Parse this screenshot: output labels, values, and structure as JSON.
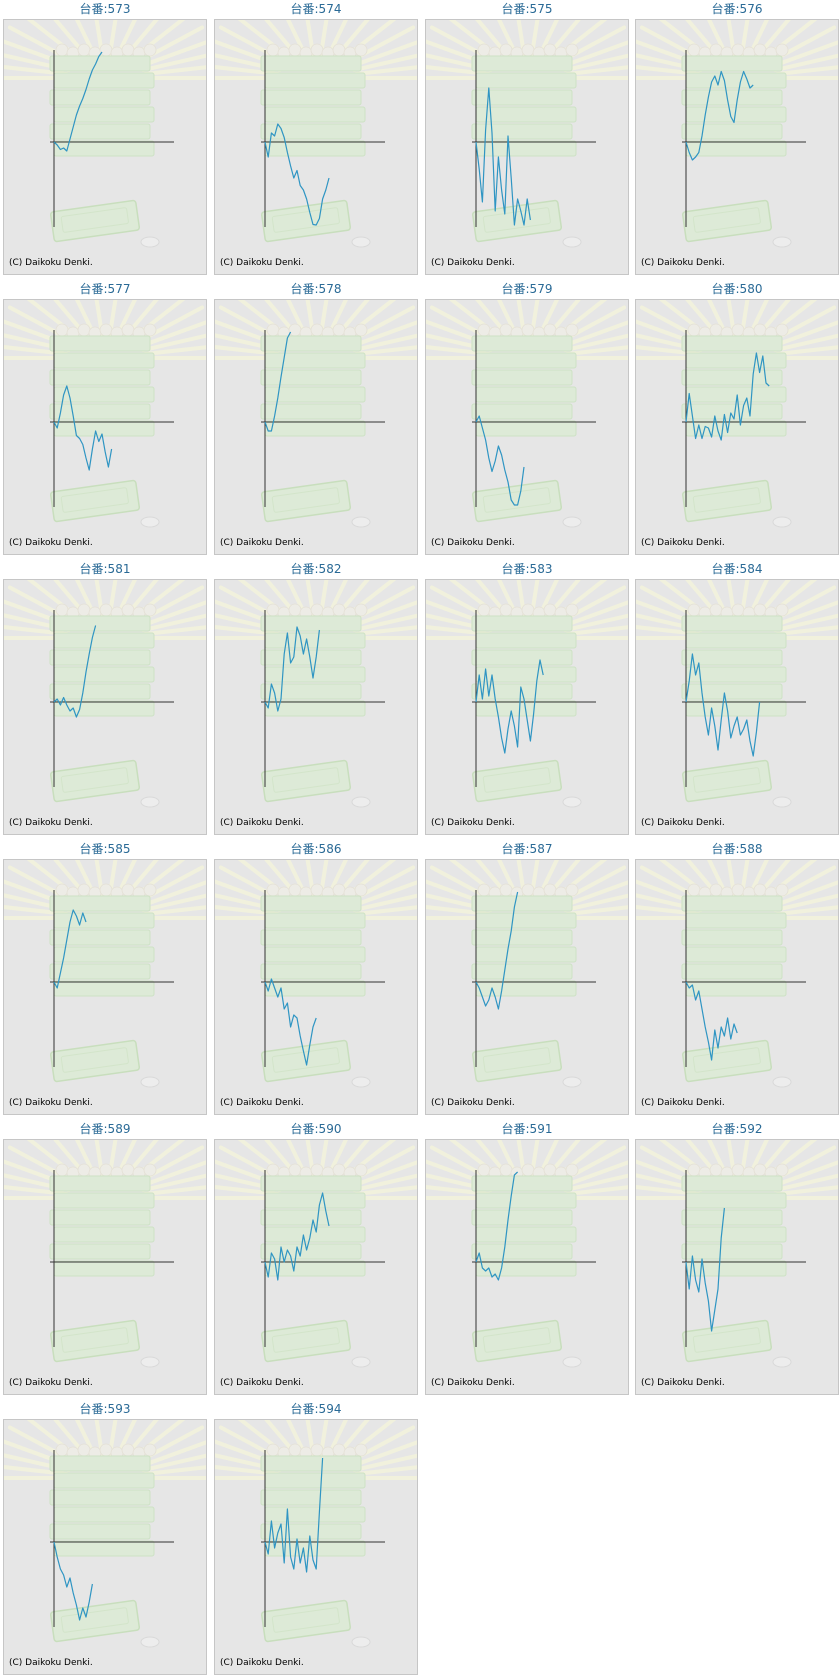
{
  "copyright": "(C) Daikoku Denki.",
  "series_color": "#2f95c3",
  "chart_data": [
    {
      "type": "line",
      "title": "台番:573",
      "series": [
        {
          "values": [
            0,
            -0.1,
            -0.25,
            -0.2,
            -0.3,
            0.1,
            0.5,
            0.9,
            1.2,
            1.45,
            1.75,
            2.1,
            2.4,
            2.6,
            2.85,
            3.05
          ]
        }
      ]
    },
    {
      "type": "line",
      "title": "台番:574",
      "series": [
        {
          "values": [
            0,
            -0.5,
            0.3,
            0.2,
            0.6,
            0.45,
            0.15,
            -0.35,
            -0.8,
            -1.2,
            -0.95,
            -1.45,
            -1.6,
            -1.9,
            -2.35,
            -2.75,
            -3.05,
            -2.55,
            -1.9,
            -1.6,
            -1.2
          ]
        }
      ]
    },
    {
      "type": "line",
      "title": "台番:575",
      "series": [
        {
          "values": [
            0,
            -0.9,
            -2.0,
            0.4,
            1.8,
            0.3,
            -2.3,
            -0.5,
            -1.6,
            -2.4,
            0.2,
            -1.2,
            -2.8,
            -1.9,
            -2.3,
            -3.1,
            -1.9,
            -2.6
          ]
        }
      ]
    },
    {
      "type": "line",
      "title": "台番:576",
      "series": [
        {
          "values": [
            0,
            -0.35,
            -0.6,
            -0.5,
            -0.35,
            0.2,
            0.9,
            1.5,
            2.0,
            2.2,
            1.9,
            2.35,
            2.05,
            1.4,
            0.85,
            0.65,
            1.4,
            2.0,
            2.35,
            2.1,
            1.8,
            1.9
          ]
        }
      ]
    },
    {
      "type": "line",
      "title": "台番:577",
      "series": [
        {
          "values": [
            0,
            -0.2,
            0.3,
            0.9,
            1.2,
            0.8,
            0.2,
            -0.45,
            -0.55,
            -0.75,
            -1.2,
            -1.6,
            -0.9,
            -0.3,
            -0.65,
            -0.4,
            -1.0,
            -1.5,
            -0.9
          ]
        }
      ]
    },
    {
      "type": "line",
      "title": "台番:578",
      "series": [
        {
          "values": [
            0,
            -0.3,
            -0.3,
            0.2,
            0.8,
            1.5,
            2.15,
            2.8,
            3.05
          ]
        }
      ]
    },
    {
      "type": "line",
      "title": "台番:579",
      "series": [
        {
          "values": [
            0,
            0.2,
            -0.2,
            -0.6,
            -1.2,
            -1.65,
            -1.3,
            -0.8,
            -1.1,
            -1.6,
            -2.0,
            -2.6,
            -3.05,
            -2.8,
            -2.3,
            -1.5
          ]
        }
      ]
    },
    {
      "type": "line",
      "title": "台番:580",
      "series": [
        {
          "values": [
            0,
            0.95,
            0.2,
            -0.55,
            -0.1,
            -0.55,
            -0.15,
            -0.2,
            -0.5,
            0.2,
            -0.3,
            -0.6,
            0.25,
            -0.35,
            0.3,
            0.1,
            0.9,
            -0.1,
            0.55,
            0.8,
            0.2,
            1.6,
            2.3,
            1.65,
            2.2,
            1.3,
            1.2
          ]
        }
      ]
    },
    {
      "type": "line",
      "title": "台番:581",
      "series": [
        {
          "values": [
            0,
            0.1,
            -0.1,
            0.15,
            -0.1,
            -0.3,
            -0.2,
            -0.5,
            -0.25,
            0.3,
            1.0,
            1.6,
            2.15,
            2.55
          ]
        }
      ]
    },
    {
      "type": "line",
      "title": "台番:582",
      "series": [
        {
          "values": [
            0,
            -0.2,
            0.6,
            0.3,
            -0.3,
            0.1,
            1.6,
            2.3,
            1.3,
            1.5,
            2.5,
            2.2,
            1.6,
            2.1,
            1.5,
            0.8,
            1.5,
            2.4
          ]
        }
      ]
    },
    {
      "type": "line",
      "title": "台番:583",
      "series": [
        {
          "values": [
            0,
            0.9,
            0.1,
            1.1,
            0.2,
            0.9,
            0.1,
            -0.5,
            -1.2,
            -1.7,
            -0.9,
            -0.3,
            -0.8,
            -1.5,
            0.5,
            0.1,
            -0.6,
            -1.3,
            -0.4,
            0.7,
            1.4,
            0.9
          ]
        }
      ]
    },
    {
      "type": "line",
      "title": "台番:584",
      "series": [
        {
          "values": [
            0,
            0.7,
            1.6,
            0.9,
            1.3,
            0.3,
            -0.5,
            -1.1,
            -0.2,
            -0.8,
            -1.6,
            -0.6,
            0.3,
            -0.3,
            -1.2,
            -0.8,
            -0.5,
            -1.1,
            -0.9,
            -0.6,
            -1.3,
            -1.8,
            -1.0,
            0
          ]
        }
      ]
    },
    {
      "type": "line",
      "title": "台番:585",
      "series": [
        {
          "values": [
            0,
            -0.2,
            0.3,
            0.8,
            1.4,
            2.0,
            2.4,
            2.2,
            1.9,
            2.3,
            2.0
          ]
        }
      ]
    },
    {
      "type": "line",
      "title": "台番:586",
      "series": [
        {
          "values": [
            0,
            -0.3,
            0.1,
            -0.2,
            -0.5,
            -0.2,
            -0.9,
            -0.7,
            -1.5,
            -1.1,
            -1.2,
            -1.8,
            -2.3,
            -2.8,
            -2.1,
            -1.5,
            -1.2
          ]
        }
      ]
    },
    {
      "type": "line",
      "title": "台番:587",
      "series": [
        {
          "values": [
            0,
            -0.2,
            -0.5,
            -0.8,
            -0.6,
            -0.2,
            -0.5,
            -0.9,
            -0.3,
            0.4,
            1.1,
            1.7,
            2.5,
            3.2
          ]
        }
      ]
    },
    {
      "type": "line",
      "title": "台番:588",
      "series": [
        {
          "values": [
            0,
            -0.2,
            -0.1,
            -0.6,
            -0.3,
            -0.9,
            -1.5,
            -2.0,
            -2.6,
            -1.6,
            -2.2,
            -1.5,
            -1.8,
            -1.2,
            -1.9,
            -1.4,
            -1.7
          ]
        }
      ]
    },
    {
      "type": "line",
      "title": "台番:589",
      "series": [
        {
          "values": []
        }
      ]
    },
    {
      "type": "line",
      "title": "台番:590",
      "series": [
        {
          "values": [
            0,
            -0.5,
            0.3,
            0.1,
            -0.6,
            0.5,
            0,
            0.4,
            0.2,
            -0.3,
            0.5,
            0.2,
            0.9,
            0.4,
            0.8,
            1.4,
            1.0,
            1.9,
            2.3,
            1.7,
            1.2
          ]
        }
      ]
    },
    {
      "type": "line",
      "title": "台番:591",
      "series": [
        {
          "values": [
            0,
            0.3,
            -0.2,
            -0.3,
            -0.2,
            -0.5,
            -0.4,
            -0.6,
            -0.2,
            0.5,
            1.4,
            2.2,
            2.9,
            3.2
          ]
        }
      ]
    },
    {
      "type": "line",
      "title": "台番:592",
      "series": [
        {
          "values": [
            0,
            -0.9,
            0.2,
            -0.6,
            -1.0,
            0.1,
            -0.7,
            -1.3,
            -2.3,
            -1.6,
            -0.9,
            0.8,
            1.8
          ]
        }
      ]
    },
    {
      "type": "line",
      "title": "台番:593",
      "series": [
        {
          "values": [
            0,
            -0.5,
            -0.9,
            -1.1,
            -1.5,
            -1.2,
            -1.7,
            -2.1,
            -2.6,
            -2.2,
            -2.5,
            -2.0,
            -1.4
          ]
        }
      ]
    },
    {
      "type": "line",
      "title": "台番:594",
      "series": [
        {
          "values": [
            0,
            -0.4,
            0.7,
            -0.2,
            0.3,
            0.6,
            -0.7,
            1.1,
            -0.5,
            -0.9,
            0.1,
            -0.7,
            -0.2,
            -1.0,
            0.2,
            -0.6,
            -0.9,
            1.0,
            2.8
          ]
        }
      ]
    }
  ]
}
